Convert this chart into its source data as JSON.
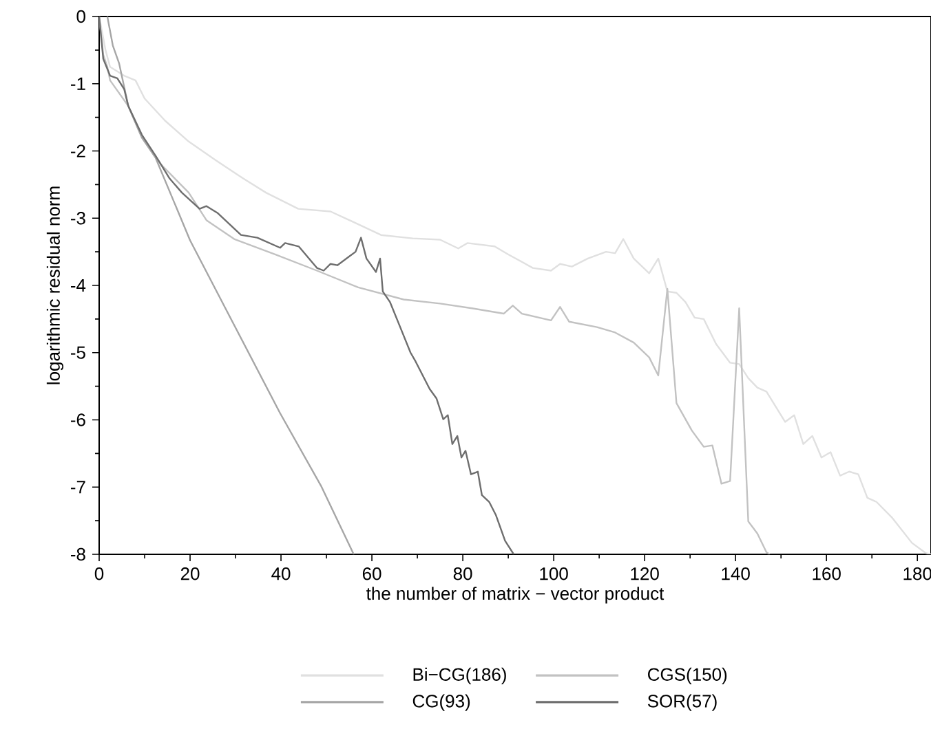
{
  "chart_data": {
    "type": "line",
    "xlabel": "the number of matrix − vector product",
    "ylabel": "logarithmic residual norm",
    "xlim": [
      0,
      183
    ],
    "ylim": [
      -8,
      0
    ],
    "xticks": [
      0,
      20,
      40,
      60,
      80,
      100,
      120,
      140,
      160,
      180
    ],
    "yticks": [
      -8,
      -7,
      -6,
      -5,
      -4,
      -3,
      -2,
      -1,
      0
    ],
    "legend": "bottom",
    "grid": false,
    "series": [
      {
        "name": "Bi−CG(186)",
        "color": "#e0e0e0",
        "x": [
          0,
          1.4,
          2.4,
          5.5,
          8,
          10,
          14.5,
          19.7,
          25.7,
          31.7,
          36.7,
          43.8,
          50.9,
          57,
          62,
          69,
          75,
          79,
          81,
          87,
          90,
          95.4,
          99.4,
          101.4,
          104,
          107.5,
          111.5,
          113.5,
          115.3,
          117.6,
          121,
          123,
          125,
          127,
          129,
          131,
          133,
          135.7,
          138.8,
          140.8,
          142.8,
          144.8,
          146.8,
          150.9,
          152.9,
          154.9,
          156.9,
          158.9,
          160.9,
          163,
          165,
          167,
          169,
          171,
          174.5,
          178.8,
          181.8,
          183
        ],
        "values": [
          0,
          -0.5,
          -0.75,
          -0.88,
          -0.95,
          -1.22,
          -1.55,
          -1.86,
          -2.14,
          -2.41,
          -2.62,
          -2.86,
          -2.9,
          -3.09,
          -3.25,
          -3.3,
          -3.32,
          -3.45,
          -3.37,
          -3.42,
          -3.54,
          -3.74,
          -3.78,
          -3.68,
          -3.72,
          -3.6,
          -3.5,
          -3.52,
          -3.31,
          -3.6,
          -3.82,
          -3.6,
          -4.09,
          -4.11,
          -4.25,
          -4.48,
          -4.5,
          -4.87,
          -5.15,
          -5.17,
          -5.38,
          -5.52,
          -5.58,
          -6.03,
          -5.93,
          -6.36,
          -6.24,
          -6.56,
          -6.48,
          -6.83,
          -6.77,
          -6.81,
          -7.16,
          -7.22,
          -7.46,
          -7.83,
          -7.98,
          -8
        ]
      },
      {
        "name": "CGS(150)",
        "color": "#c2c2c2",
        "x": [
          0,
          0.9,
          1.8,
          2.4,
          6.4,
          9.4,
          13.6,
          19.7,
          23.6,
          29.7,
          38.8,
          47.9,
          57,
          67,
          75,
          82,
          89,
          91,
          93,
          99.4,
          101.4,
          103.4,
          109.5,
          113.5,
          117.6,
          121,
          123,
          125,
          127,
          130.4,
          133,
          134.9,
          136.9,
          138.8,
          140.8,
          142.8,
          144.8,
          146.8,
          147.5
        ],
        "values": [
          0,
          -0.57,
          -0.75,
          -0.95,
          -1.33,
          -1.8,
          -2.2,
          -2.62,
          -3.03,
          -3.31,
          -3.54,
          -3.78,
          -4.03,
          -4.21,
          -4.27,
          -4.34,
          -4.42,
          -4.3,
          -4.42,
          -4.52,
          -4.32,
          -4.54,
          -4.62,
          -4.7,
          -4.85,
          -5.07,
          -5.34,
          -4.05,
          -5.75,
          -6.16,
          -6.4,
          -6.38,
          -6.95,
          -6.91,
          -4.34,
          -7.51,
          -7.69,
          -7.97,
          -8
        ]
      },
      {
        "name": "CG(93)",
        "color": "#a6a6a6",
        "x": [
          1.8,
          3,
          4.4,
          6.4,
          9.4,
          12.4,
          20,
          28.7,
          39.8,
          48.8,
          56
        ],
        "values": [
          0,
          -0.43,
          -0.7,
          -1.33,
          -1.8,
          -2.1,
          -3.33,
          -4.46,
          -5.9,
          -6.98,
          -8
        ]
      },
      {
        "name": "SOR(57)",
        "color": "#6e6e6e",
        "x": [
          0,
          0.9,
          2.4,
          4,
          5.5,
          6.4,
          9.4,
          12.4,
          15.5,
          18.2,
          22.1,
          23.6,
          26,
          28.7,
          31.2,
          34.8,
          39.8,
          40.9,
          43.9,
          47.9,
          49.4,
          50.9,
          52.4,
          56.4,
          57.6,
          58.8,
          60.9,
          61.8,
          62.4,
          64,
          65.5,
          68.5,
          69.6,
          72.7,
          74.2,
          75.7,
          76.7,
          77.7,
          78.8,
          79.7,
          80.6,
          81.8,
          83.3,
          84.2,
          85.8,
          87.3,
          89.3,
          91.2
        ],
        "values": [
          0,
          -0.63,
          -0.88,
          -0.92,
          -1.08,
          -1.33,
          -1.76,
          -2.07,
          -2.41,
          -2.62,
          -2.86,
          -2.82,
          -2.92,
          -3.09,
          -3.25,
          -3.29,
          -3.44,
          -3.37,
          -3.42,
          -3.74,
          -3.78,
          -3.68,
          -3.7,
          -3.5,
          -3.29,
          -3.6,
          -3.8,
          -3.6,
          -4.09,
          -4.25,
          -4.5,
          -5.0,
          -5.13,
          -5.54,
          -5.68,
          -5.99,
          -5.93,
          -6.36,
          -6.24,
          -6.56,
          -6.46,
          -6.81,
          -6.77,
          -7.12,
          -7.22,
          -7.42,
          -7.8,
          -8
        ]
      }
    ]
  }
}
